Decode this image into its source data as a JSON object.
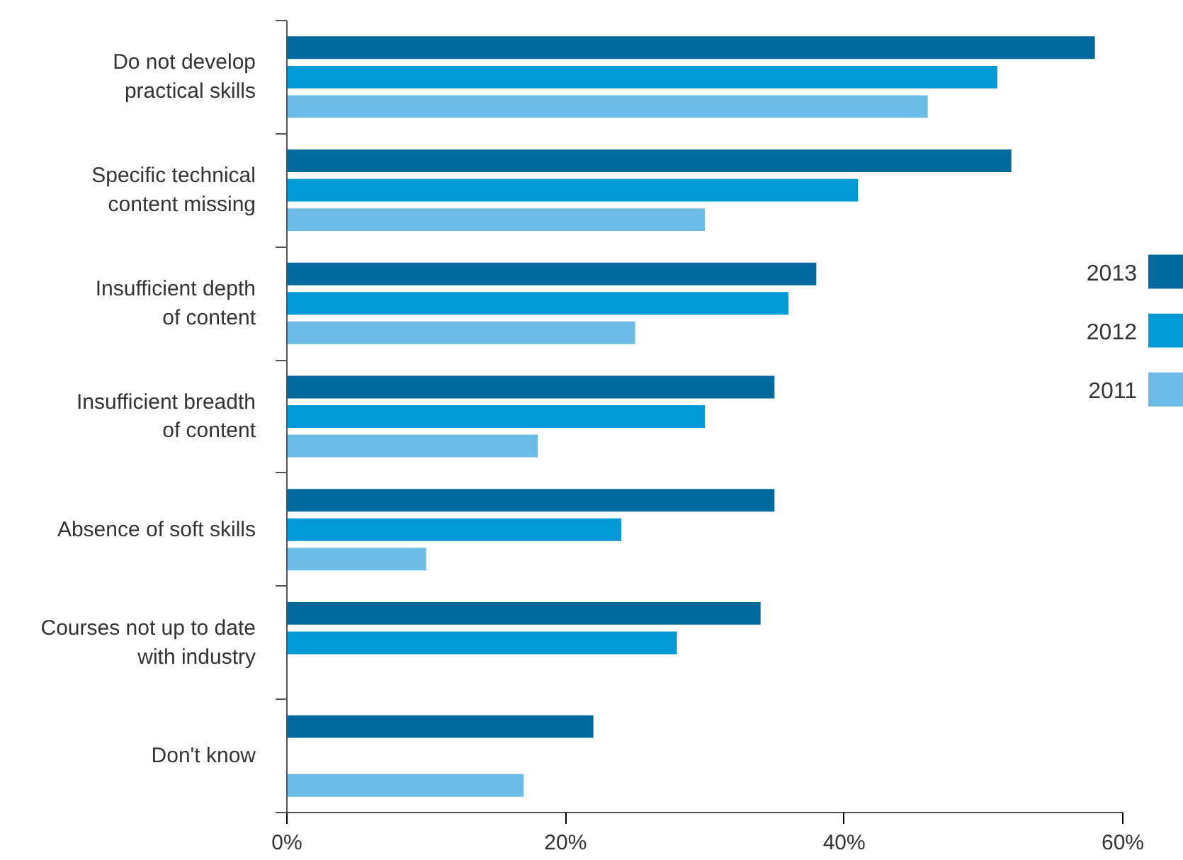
{
  "chart_data": {
    "type": "bar",
    "orientation": "horizontal",
    "categories": [
      "Do not develop\npractical skills",
      "Specific technical\ncontent missing",
      "Insufficient depth\nof content",
      "Insufficient breadth\nof content",
      "Absence of soft skills",
      "Courses not up to date\nwith industry",
      "Don't know"
    ],
    "series": [
      {
        "name": "2013",
        "color": "#006a9e",
        "values": [
          58,
          52,
          38,
          35,
          35,
          34,
          22
        ]
      },
      {
        "name": "2012",
        "color": "#0099d6",
        "values": [
          51,
          41,
          36,
          30,
          24,
          28,
          null
        ]
      },
      {
        "name": "2011",
        "color": "#6cbde6",
        "values": [
          46,
          30,
          25,
          18,
          10,
          null,
          17
        ]
      }
    ],
    "xlim": [
      0,
      60
    ],
    "xticks": [
      {
        "value": 0,
        "label": "0%"
      },
      {
        "value": 20,
        "label": "20%"
      },
      {
        "value": 40,
        "label": "40%"
      },
      {
        "value": 60,
        "label": "60%"
      }
    ],
    "grid": false,
    "legend": "right"
  }
}
